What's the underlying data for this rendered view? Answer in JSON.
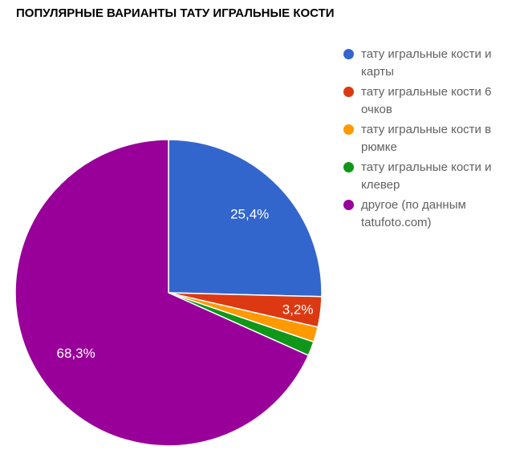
{
  "title": "ПОПУЛЯРНЫЕ ВАРИАНТЫ ТАТУ ИГРАЛЬНЫЕ КОСТИ",
  "background_color": "#ffffff",
  "legend_text_color": "#616161",
  "chart_data": {
    "type": "pie",
    "title": "ПОПУЛЯРНЫЕ ВАРИАНТЫ ТАТУ ИГРАЛЬНЫЕ КОСТИ",
    "legend_position": "right",
    "start_angle_deg": 0,
    "direction": "clockwise",
    "slices": [
      {
        "label": "тату игральные кости и карты",
        "value": 25.4,
        "display": "25,4%",
        "color": "#3366CC"
      },
      {
        "label": "тату игральные кости 6 очков",
        "value": 3.2,
        "display": "3,2%",
        "color": "#DC3912"
      },
      {
        "label": "тату игральные кости в рюмке",
        "value": 1.6,
        "display": "",
        "color": "#FF9900"
      },
      {
        "label": "тату игральные кости и клевер",
        "value": 1.5,
        "display": "",
        "color": "#109618"
      },
      {
        "label": "другое (по данным tatufoto.com)",
        "value": 68.3,
        "display": "68,3%",
        "color": "#990099"
      }
    ]
  }
}
